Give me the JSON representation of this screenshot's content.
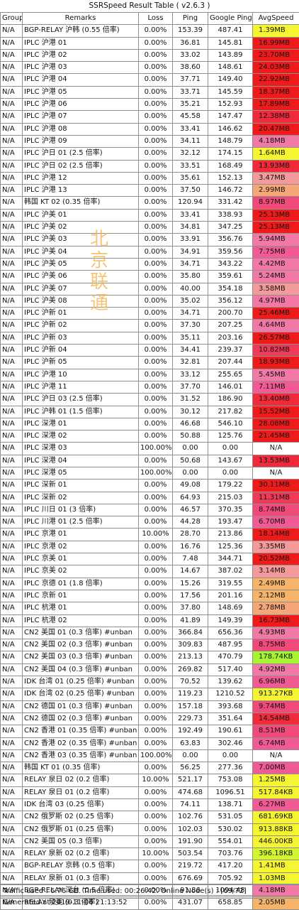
{
  "title": "SSRSpeed Result Table ( v2.6.3 )",
  "headers": [
    "Group",
    "Remarks",
    "Loss",
    "Ping",
    "Google Ping",
    "AvgSpeed"
  ],
  "watermark": [
    "北",
    "京",
    "联",
    "通"
  ],
  "footer": {
    "traffic": "Traffic used : 6.76 GB. Time used: 00:26:42. Online Node(s) : [69/72]",
    "generated": "Generated at 2019-11-06 21:13:52"
  },
  "colors": {
    "red": "#ef1a1a",
    "pink": "#f279a6",
    "yellow": "#f5f531",
    "lime": "#a6f530",
    "na": "#ffffff"
  },
  "chart_data": {
    "type": "table",
    "rows": [
      {
        "group": "N/A",
        "remarks": "BGP-RELAY 沪韩 (0.55 倍率)",
        "loss": "0.00%",
        "ping": "153.39",
        "gping": "487.41",
        "speed": "1.39MB",
        "color": "#f5f531"
      },
      {
        "group": "N/A",
        "remarks": "IPLC 沪港 01",
        "loss": "0.00%",
        "ping": "36.81",
        "gping": "145.81",
        "speed": "16.99MB",
        "color": "#ef1a1a"
      },
      {
        "group": "N/A",
        "remarks": "IPLC 沪港 02",
        "loss": "0.00%",
        "ping": "33.02",
        "gping": "143.89",
        "speed": "23.70MB",
        "color": "#ef1a1a"
      },
      {
        "group": "N/A",
        "remarks": "IPLC 沪港 03",
        "loss": "0.00%",
        "ping": "38.60",
        "gping": "148.61",
        "speed": "24.03MB",
        "color": "#ef1a1a"
      },
      {
        "group": "N/A",
        "remarks": "IPLC 沪港 04",
        "loss": "0.00%",
        "ping": "37.71",
        "gping": "149.40",
        "speed": "22.92MB",
        "color": "#ef1a1a"
      },
      {
        "group": "N/A",
        "remarks": "IPLC 沪港 05",
        "loss": "0.00%",
        "ping": "33.71",
        "gping": "145.59",
        "speed": "18.37MB",
        "color": "#ef1a1a"
      },
      {
        "group": "N/A",
        "remarks": "IPLC 沪港 06",
        "loss": "0.00%",
        "ping": "35.21",
        "gping": "152.93",
        "speed": "17.89MB",
        "color": "#ef1a1a"
      },
      {
        "group": "N/A",
        "remarks": "IPLC 沪港 07",
        "loss": "0.00%",
        "ping": "45.58",
        "gping": "147.47",
        "speed": "12.38MB",
        "color": "#ef2a3a"
      },
      {
        "group": "N/A",
        "remarks": "IPLC 沪港 08",
        "loss": "0.00%",
        "ping": "33.41",
        "gping": "146.62",
        "speed": "20.47MB",
        "color": "#ef1a1a"
      },
      {
        "group": "N/A",
        "remarks": "IPLC 沪港 09",
        "loss": "0.00%",
        "ping": "34.11",
        "gping": "148.79",
        "speed": "4.18MB",
        "color": "#f279a6"
      },
      {
        "group": "N/A",
        "remarks": "IPLC 沪日 01 (2.5 倍率)",
        "loss": "0.00%",
        "ping": "32.12",
        "gping": "174.15",
        "speed": "1.64MB",
        "color": "#f5f531"
      },
      {
        "group": "N/A",
        "remarks": "IPLC 沪日 02 (2.5 倍率)",
        "loss": "0.00%",
        "ping": "33.51",
        "gping": "168.49",
        "speed": "13.93MB",
        "color": "#ef2a3a"
      },
      {
        "group": "N/A",
        "remarks": "IPLC 沪港 12",
        "loss": "0.00%",
        "ping": "35.61",
        "gping": "152.13",
        "speed": "3.47MB",
        "color": "#f59a9a"
      },
      {
        "group": "N/A",
        "remarks": "IPLC 沪港 13",
        "loss": "0.00%",
        "ping": "37.50",
        "gping": "146.72",
        "speed": "2.99MB",
        "color": "#f5a77a"
      },
      {
        "group": "N/A",
        "remarks": "韩国 KT 02 (0.35 倍率)",
        "loss": "0.00%",
        "ping": "120.94",
        "gping": "331.42",
        "speed": "8.97MB",
        "color": "#f04a7a"
      },
      {
        "group": "N/A",
        "remarks": "IPLC 沪美 01",
        "loss": "0.00%",
        "ping": "33.41",
        "gping": "338.93",
        "speed": "25.13MB",
        "color": "#ef1a1a"
      },
      {
        "group": "N/A",
        "remarks": "IPLC 沪美 02",
        "loss": "0.00%",
        "ping": "34.81",
        "gping": "347.25",
        "speed": "25.13MB",
        "color": "#ef1a1a"
      },
      {
        "group": "N/A",
        "remarks": "IPLC 沪美 03",
        "loss": "0.00%",
        "ping": "33.91",
        "gping": "356.76",
        "speed": "5.94MB",
        "color": "#f279a6"
      },
      {
        "group": "N/A",
        "remarks": "IPLC 沪美 04",
        "loss": "0.00%",
        "ping": "34.91",
        "gping": "359.56",
        "speed": "7.75MB",
        "color": "#f25a95"
      },
      {
        "group": "N/A",
        "remarks": "IPLC 沪美 05",
        "loss": "0.00%",
        "ping": "34.71",
        "gping": "343.22",
        "speed": "4.42MB",
        "color": "#f279a6"
      },
      {
        "group": "N/A",
        "remarks": "IPLC 沪美 06",
        "loss": "0.00%",
        "ping": "35.80",
        "gping": "359.61",
        "speed": "5.24MB",
        "color": "#f279a6"
      },
      {
        "group": "N/A",
        "remarks": "IPLC 沪美 07",
        "loss": "0.00%",
        "ping": "40.00",
        "gping": "354.18",
        "speed": "3.58MB",
        "color": "#f59a9a"
      },
      {
        "group": "N/A",
        "remarks": "IPLC 沪美 08",
        "loss": "0.00%",
        "ping": "35.02",
        "gping": "356.12",
        "speed": "4.97MB",
        "color": "#f279a6"
      },
      {
        "group": "N/A",
        "remarks": "IPLC 沪新 01",
        "loss": "0.00%",
        "ping": "34.71",
        "gping": "200.70",
        "speed": "25.46MB",
        "color": "#ef1a1a"
      },
      {
        "group": "N/A",
        "remarks": "IPLC 沪新 02",
        "loss": "0.00%",
        "ping": "37.30",
        "gping": "207.25",
        "speed": "4.64MB",
        "color": "#f279a6"
      },
      {
        "group": "N/A",
        "remarks": "IPLC 沪新 03",
        "loss": "0.00%",
        "ping": "35.11",
        "gping": "203.16",
        "speed": "26.57MB",
        "color": "#ef1a1a"
      },
      {
        "group": "N/A",
        "remarks": "IPLC 沪新 04",
        "loss": "0.00%",
        "ping": "34.41",
        "gping": "239.37",
        "speed": "10.82MB",
        "color": "#ef3a5a"
      },
      {
        "group": "N/A",
        "remarks": "IPLC 沪新 05",
        "loss": "0.00%",
        "ping": "32.81",
        "gping": "207.44",
        "speed": "18.93MB",
        "color": "#ef1a1a"
      },
      {
        "group": "N/A",
        "remarks": "IPLC 沪港 10",
        "loss": "0.00%",
        "ping": "33.12",
        "gping": "255.65",
        "speed": "5.45MB",
        "color": "#f279a6"
      },
      {
        "group": "N/A",
        "remarks": "IPLC 沪港 11",
        "loss": "0.00%",
        "ping": "37.70",
        "gping": "146.01",
        "speed": "7.11MB",
        "color": "#f25a95"
      },
      {
        "group": "N/A",
        "remarks": "IPLC 沪日 03 (2.5 倍率)",
        "loss": "0.00%",
        "ping": "31.52",
        "gping": "186.90",
        "speed": "13.40MB",
        "color": "#ef2a3a"
      },
      {
        "group": "N/A",
        "remarks": "IPLC 沪韩 01 (1.5 倍率)",
        "loss": "0.00%",
        "ping": "30.12",
        "gping": "217.82",
        "speed": "15.52MB",
        "color": "#ef1a1a"
      },
      {
        "group": "N/A",
        "remarks": "IPLC 深港 01",
        "loss": "0.00%",
        "ping": "46.68",
        "gping": "546.10",
        "speed": "28.08MB",
        "color": "#ef1a1a"
      },
      {
        "group": "N/A",
        "remarks": "IPLC 深港 02",
        "loss": "0.00%",
        "ping": "50.88",
        "gping": "125.76",
        "speed": "21.45MB",
        "color": "#ef1a1a"
      },
      {
        "group": "N/A",
        "remarks": "IPLC 深港 03",
        "loss": "100.00%",
        "ping": "0.00",
        "gping": "0.00",
        "speed": "N/A",
        "color": "#ffffff"
      },
      {
        "group": "N/A",
        "remarks": "IPLC 深港 04",
        "loss": "0.00%",
        "ping": "50.68",
        "gping": "143.67",
        "speed": "13.53MB",
        "color": "#ef2a3a"
      },
      {
        "group": "N/A",
        "remarks": "IPLC 深港 05",
        "loss": "100.00%",
        "ping": "0.00",
        "gping": "0.00",
        "speed": "N/A",
        "color": "#ffffff"
      },
      {
        "group": "N/A",
        "remarks": "IPLC 深新 01",
        "loss": "0.00%",
        "ping": "49.08",
        "gping": "179.22",
        "speed": "30.11MB",
        "color": "#ef1a1a"
      },
      {
        "group": "N/A",
        "remarks": "IPLC 深新 02",
        "loss": "0.00%",
        "ping": "64.93",
        "gping": "215.03",
        "speed": "11.31MB",
        "color": "#ef3a5a"
      },
      {
        "group": "N/A",
        "remarks": "IPLC 川日 01 (3 倍率)",
        "loss": "0.00%",
        "ping": "46.57",
        "gping": "370.35",
        "speed": "8.74MB",
        "color": "#f04a7a"
      },
      {
        "group": "N/A",
        "remarks": "IPLC 川港 01 (2.5 倍率)",
        "loss": "0.00%",
        "ping": "44.28",
        "gping": "193.47",
        "speed": "6.70MB",
        "color": "#f25a95"
      },
      {
        "group": "N/A",
        "remarks": "IPLC 京港 01",
        "loss": "10.00%",
        "ping": "28.70",
        "gping": "213.86",
        "speed": "18.14MB",
        "color": "#ef1a1a"
      },
      {
        "group": "N/A",
        "remarks": "IPLC 京港 02",
        "loss": "0.00%",
        "ping": "16.76",
        "gping": "125.36",
        "speed": "3.35MB",
        "color": "#f59a9a"
      },
      {
        "group": "N/A",
        "remarks": "IPLC 京美 01",
        "loss": "0.00%",
        "ping": "7.48",
        "gping": "344.71",
        "speed": "20.52MB",
        "color": "#ef1a1a"
      },
      {
        "group": "N/A",
        "remarks": "IPLC 京美 02",
        "loss": "0.00%",
        "ping": "14.67",
        "gping": "387.02",
        "speed": "3.14MB",
        "color": "#f59a9a"
      },
      {
        "group": "N/A",
        "remarks": "IPLC 京德 01 (1.8 倍率)",
        "loss": "0.00%",
        "ping": "15.26",
        "gping": "319.55",
        "speed": "2.49MB",
        "color": "#f5b46a"
      },
      {
        "group": "N/A",
        "remarks": "IPLC 京新 01",
        "loss": "0.00%",
        "ping": "17.56",
        "gping": "201.16",
        "speed": "2.12MB",
        "color": "#f5b46a"
      },
      {
        "group": "N/A",
        "remarks": "IPLC 杭港 01",
        "loss": "0.00%",
        "ping": "37.80",
        "gping": "148.69",
        "speed": "2.78MB",
        "color": "#f5a77a"
      },
      {
        "group": "N/A",
        "remarks": "IPLC 杭港 02",
        "loss": "0.00%",
        "ping": "41.89",
        "gping": "149.39",
        "speed": "16.73MB",
        "color": "#ef1a1a"
      },
      {
        "group": "N/A",
        "remarks": "CN2 美国 01 (0.3 倍率) #unban",
        "loss": "0.00%",
        "ping": "366.84",
        "gping": "656.36",
        "speed": "4.93MB",
        "color": "#f279a6"
      },
      {
        "group": "N/A",
        "remarks": "CN2 美国 02 (0.3 倍率) #unban",
        "loss": "0.00%",
        "ping": "309.83",
        "gping": "487.95",
        "speed": "8.75MB",
        "color": "#f04a7a"
      },
      {
        "group": "N/A",
        "remarks": "CN2 美国 03 (0.3 倍率) #unban",
        "loss": "0.00%",
        "ping": "213.13",
        "gping": "470.79",
        "speed": "178.74KB",
        "color": "#a6f530"
      },
      {
        "group": "N/A",
        "remarks": "CN2 美国 04 (0.3 倍率) #unban",
        "loss": "0.00%",
        "ping": "269.82",
        "gping": "517.40",
        "speed": "4.92MB",
        "color": "#f279a6"
      },
      {
        "group": "N/A",
        "remarks": "IDK 台湾 01 (0.25 倍率) #unban",
        "loss": "0.00%",
        "ping": "70.52",
        "gping": "139.62",
        "speed": "6.96MB",
        "color": "#f25a95"
      },
      {
        "group": "N/A",
        "remarks": "IDK 台湾 02 (0.25 倍率) #unban",
        "loss": "0.00%",
        "ping": "119.23",
        "gping": "1210.52",
        "speed": "913.27KB",
        "color": "#f5f531"
      },
      {
        "group": "N/A",
        "remarks": "CN2 德国 01 (0.3 倍率) #unban",
        "loss": "0.00%",
        "ping": "157.18",
        "gping": "393.68",
        "speed": "9.74MB",
        "color": "#f04a7a"
      },
      {
        "group": "N/A",
        "remarks": "CN2 德国 02 (0.3 倍率) #unban",
        "loss": "0.00%",
        "ping": "229.73",
        "gping": "351.64",
        "speed": "14.54MB",
        "color": "#ef2a3a"
      },
      {
        "group": "N/A",
        "remarks": "CN2 香港 01 (0.35 倍率) #unban",
        "loss": "0.00%",
        "ping": "192.49",
        "gping": "190.61",
        "speed": "8.51MB",
        "color": "#f04a7a"
      },
      {
        "group": "N/A",
        "remarks": "CN2 香港 02 (0.35 倍率) #unban",
        "loss": "0.00%",
        "ping": "63.83",
        "gping": "302.46",
        "speed": "6.74MB",
        "color": "#f25a95"
      },
      {
        "group": "N/A",
        "remarks": "CN2 香港 03 (0.35 倍率) #unban",
        "loss": "100.00%",
        "ping": "0.00",
        "gping": "0.00",
        "speed": "N/A",
        "color": "#ffffff"
      },
      {
        "group": "N/A",
        "remarks": "韩国 KT 01 (0.35 倍率)",
        "loss": "0.00%",
        "ping": "56.25",
        "gping": "277.36",
        "speed": "7.00MB",
        "color": "#f25a95"
      },
      {
        "group": "N/A",
        "remarks": "RELAY 泉日 02 (0.2 倍率)",
        "loss": "10.00%",
        "ping": "521.17",
        "gping": "753.08",
        "speed": "1.25MB",
        "color": "#f5f531"
      },
      {
        "group": "N/A",
        "remarks": "RELAY 泉日 01 (0.2 倍率)",
        "loss": "0.00%",
        "ping": "474.68",
        "gping": "1096.51",
        "speed": "517.84KB",
        "color": "#f5f531"
      },
      {
        "group": "N/A",
        "remarks": "IDK 台湾 03 (0.25 倍率)",
        "loss": "0.00%",
        "ping": "74.11",
        "gping": "138.71",
        "speed": "6.27MB",
        "color": "#f25a95"
      },
      {
        "group": "N/A",
        "remarks": "CN2 俄罗斯 02 (0.25 倍率)",
        "loss": "0.00%",
        "ping": "102.76",
        "gping": "531.05",
        "speed": "681.69KB",
        "color": "#f5f531"
      },
      {
        "group": "N/A",
        "remarks": "CN2 俄罗斯 01 (0.25 倍率)",
        "loss": "0.00%",
        "ping": "102.03",
        "gping": "530.02",
        "speed": "913.88KB",
        "color": "#f5f531"
      },
      {
        "group": "N/A",
        "remarks": "CN2 美国 05 (0.3 倍率)",
        "loss": "0.00%",
        "ping": "191.90",
        "gping": "554.01",
        "speed": "446.00KB",
        "color": "#f5f531"
      },
      {
        "group": "N/A",
        "remarks": "RELAY 泉新 02 (0.2 倍率)",
        "loss": "10.00%",
        "ping": "503.54",
        "gping": "703.76",
        "speed": "396.18KB",
        "color": "#d4f531"
      },
      {
        "group": "N/A",
        "remarks": "BGP-RELAY 京韩 (0.5 倍率)",
        "loss": "0.00%",
        "ping": "219.72",
        "gping": "417.20",
        "speed": "1.41MB",
        "color": "#f5f531"
      },
      {
        "group": "N/A",
        "remarks": "RELAY 泉新 01 (0.3 倍率)",
        "loss": "0.00%",
        "ping": "676.69",
        "gping": "705.92",
        "speed": "1.03MB",
        "color": "#f5f531"
      },
      {
        "group": "N/A",
        "remarks": "BGP-RELAY 深台 (0.5 倍率)",
        "loss": "0.00%",
        "ping": "91.86",
        "gping": "1094.48",
        "speed": "4.18MB",
        "color": "#f279a6"
      },
      {
        "group": "N/A",
        "remarks": "RELAY 泉美 (0.3 倍率)",
        "loss": "0.00%",
        "ping": "431.07",
        "gping": "658.85",
        "speed": "2.05MB",
        "color": "#f5b46a"
      }
    ]
  }
}
